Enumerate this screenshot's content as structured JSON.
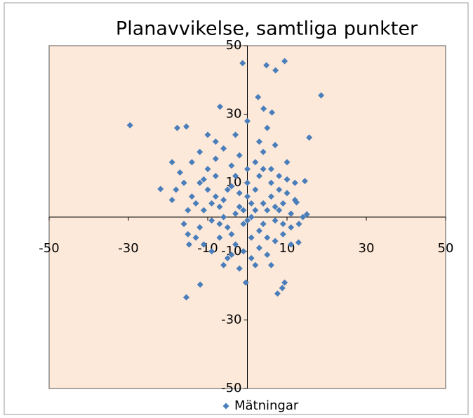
{
  "chart_data": {
    "type": "scatter",
    "title": "Planavvikelse, samtliga punkter",
    "x": [
      -29.6,
      -1.2,
      4.8,
      7.1,
      9.4,
      18.6,
      15.6,
      -21.9,
      -6.9,
      2.7,
      4.1,
      6.2,
      -17.7,
      -15.4,
      -15.4,
      -11.9,
      -0.4,
      7.6,
      8.8,
      9.4,
      15.0,
      14.5,
      12.4,
      12.9,
      -14.7,
      -12,
      -10,
      -8,
      -6,
      -4,
      -2,
      0,
      2,
      4,
      6,
      8,
      10,
      -13,
      -11,
      -9,
      -7,
      -5,
      -3,
      -1,
      1,
      3,
      5,
      7,
      9,
      11,
      -14,
      -12,
      -10,
      -8,
      -6,
      -4,
      -2,
      0,
      2,
      4,
      6,
      8,
      -16,
      -15,
      -13,
      -11,
      -9,
      -7,
      -5,
      -3,
      -1,
      1,
      3,
      5,
      7,
      9,
      11,
      -6,
      -2,
      2,
      6,
      -8,
      -3,
      3,
      7,
      10,
      -14,
      -17,
      -18,
      -16,
      12,
      13,
      -10,
      0,
      5,
      -4,
      0,
      2,
      -2,
      4,
      -6,
      6,
      -8,
      8,
      0,
      -3,
      3,
      1,
      -1,
      -5,
      5,
      -9,
      9,
      -11,
      10,
      -7,
      7,
      -4,
      4,
      1,
      -12,
      11,
      -15,
      12,
      -19,
      -19,
      14
    ],
    "series": [
      {
        "name": "Mätningar",
        "color": "#4a7ebb",
        "values": [
          26.8,
          44.9,
          44.3,
          42.8,
          45.5,
          35.5,
          23.2,
          8.2,
          32.2,
          35,
          31.6,
          30.5,
          26,
          26.4,
          -23.4,
          -19.7,
          -19.1,
          -22.3,
          -20.7,
          -19.1,
          0.8,
          10.5,
          4.3,
          -7.4,
          -8,
          10,
          8,
          12,
          5,
          9,
          3,
          6,
          8,
          4,
          10,
          2,
          7,
          4,
          2,
          -1,
          3,
          -3,
          1,
          -2,
          0,
          -4,
          2,
          -1,
          4,
          1,
          6,
          -3,
          14,
          17,
          20,
          15,
          18,
          14,
          16,
          19,
          14,
          12,
          10,
          2,
          -6,
          -8,
          -10,
          -6,
          -12,
          -8,
          -10,
          -6,
          -9,
          -11,
          -7,
          -5,
          -3,
          -14,
          -15,
          -14,
          -14,
          22,
          24,
          22,
          21,
          16,
          16,
          13,
          8,
          -2,
          10,
          -2,
          24,
          28,
          26,
          -5,
          -1,
          2,
          7,
          -2,
          0,
          6,
          6,
          8,
          10,
          12,
          12,
          4,
          2,
          8,
          -6,
          4,
          -2,
          11,
          11,
          -2,
          3,
          -11,
          14,
          -12,
          19,
          -8,
          -5,
          5,
          16,
          5,
          0
        ]
      }
    ],
    "xlim": [
      -50,
      50
    ],
    "ylim": [
      -50,
      50
    ],
    "xticks": [
      -50,
      -30,
      -10,
      10,
      30,
      50
    ],
    "yticks": [
      -50,
      -30,
      -10,
      10,
      30,
      50
    ],
    "legend": "bottom"
  }
}
